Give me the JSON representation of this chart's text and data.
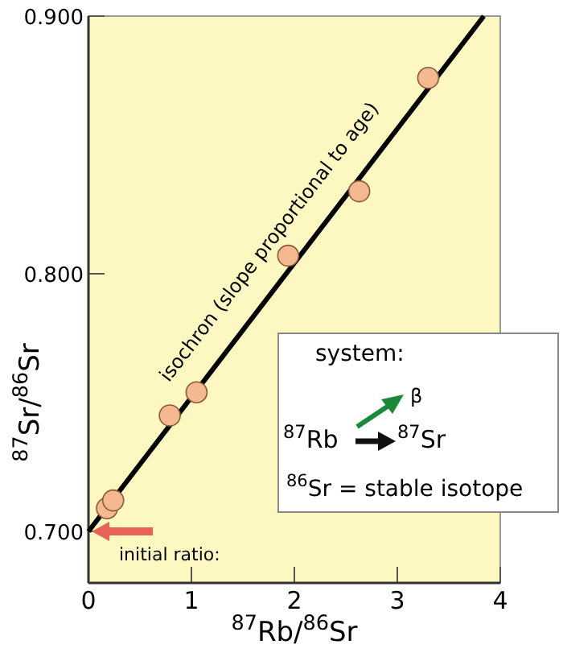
{
  "chart_data": {
    "type": "scatter",
    "xlabel": "$^{87}$Rb/$^{86}$Sr",
    "ylabel": "$^{87}$Sr/$^{86}$Sr",
    "xlim": [
      0,
      4
    ],
    "ylim": [
      0.68,
      0.9
    ],
    "xticks": [
      0,
      1,
      2,
      3,
      4
    ],
    "yticks": [
      {
        "value": 0.7,
        "label": "0.700"
      },
      {
        "value": 0.8,
        "label": "0.800"
      },
      {
        "value": 0.9,
        "label": "0.900"
      }
    ],
    "marker": "circle",
    "series": [
      {
        "color": "#f4b990",
        "x": [
          0.18,
          0.24,
          0.79,
          1.05,
          1.94,
          2.63,
          3.3
        ],
        "values": [
          0.709,
          0.712,
          0.745,
          0.754,
          0.807,
          0.832,
          0.876
        ]
      },
      {
        "type": "line",
        "color": "#000000",
        "marker": "none",
        "x": [
          0,
          3.84
        ],
        "values": [
          0.7,
          0.9
        ]
      }
    ],
    "annotations": [
      "isochron (slope proportional to age)",
      {
        "text": "initial ratio:",
        "x": 0,
        "y": 0.7
      },
      "system:",
      "β",
      "$^{87}$Rb",
      "$^{87}$Sr",
      "$^{86}$Sr = stable isotope"
    ]
  }
}
